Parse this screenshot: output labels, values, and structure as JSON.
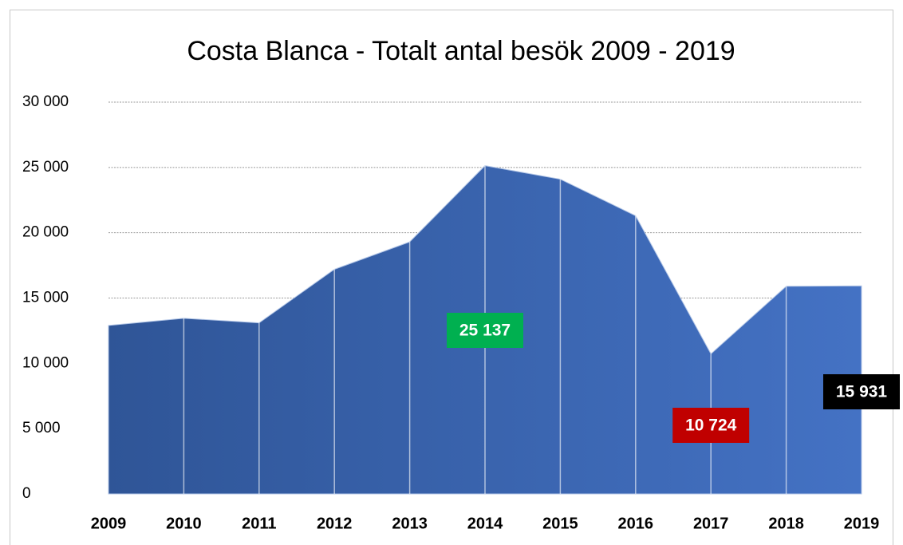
{
  "chart_data": {
    "type": "area",
    "title": "Costa Blanca - Totalt antal besök 2009 - 2019",
    "categories": [
      "2009",
      "2010",
      "2011",
      "2012",
      "2013",
      "2014",
      "2015",
      "2016",
      "2017",
      "2018",
      "2019"
    ],
    "values": [
      12900,
      13450,
      13100,
      17200,
      19300,
      25137,
      24100,
      21300,
      10724,
      15900,
      15931
    ],
    "value_labels": [
      null,
      null,
      null,
      null,
      null,
      "25 137",
      null,
      null,
      "10 724",
      null,
      "15 931"
    ],
    "value_label_colors": [
      null,
      null,
      null,
      null,
      null,
      "#00b050",
      null,
      null,
      "#c00000",
      null,
      "#000000"
    ],
    "color": [
      "#2f5597",
      "#4472c4"
    ],
    "ylim": [
      0,
      30000
    ],
    "yticks": [
      {
        "value": 0,
        "label": "0"
      },
      {
        "value": 5000,
        "label": "5 000"
      },
      {
        "value": 10000,
        "label": "10 000"
      },
      {
        "value": 15000,
        "label": "15 000"
      },
      {
        "value": 20000,
        "label": "20 000"
      },
      {
        "value": 25000,
        "label": "25 000"
      },
      {
        "value": 30000,
        "label": "30 000"
      }
    ],
    "grid": true
  }
}
